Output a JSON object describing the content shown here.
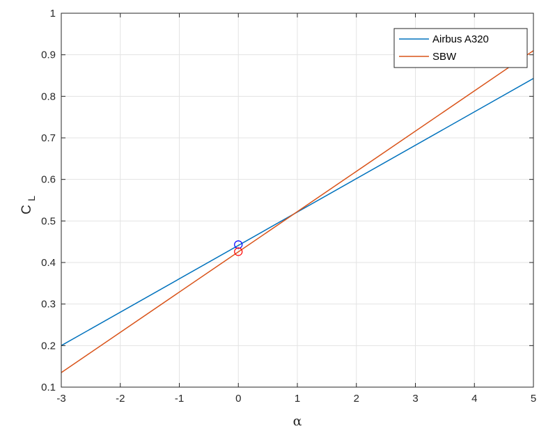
{
  "chart_data": {
    "type": "line",
    "xlabel": "α",
    "ylabel": "C",
    "ylabel_subscript": "L",
    "xlim": [
      -3,
      5
    ],
    "ylim": [
      0.1,
      1
    ],
    "xticks": [
      "-3",
      "-2",
      "-1",
      "0",
      "1",
      "2",
      "3",
      "4",
      "5"
    ],
    "yticks": [
      "0.1",
      "0.2",
      "0.3",
      "0.4",
      "0.5",
      "0.6",
      "0.7",
      "0.8",
      "0.9",
      "1"
    ],
    "grid": true,
    "legend_position": "top-right",
    "series": [
      {
        "name": "Airbus A320",
        "color": "#0072bd",
        "x": [
          -3,
          5
        ],
        "y": [
          0.2,
          0.843
        ],
        "marker": {
          "x": 0,
          "y": 0.443,
          "color": "#0000ff"
        }
      },
      {
        "name": "SBW",
        "color": "#d95319",
        "x": [
          -3,
          5
        ],
        "y": [
          0.135,
          0.91
        ],
        "marker": {
          "x": 0,
          "y": 0.426,
          "color": "#ff0000"
        }
      }
    ]
  }
}
